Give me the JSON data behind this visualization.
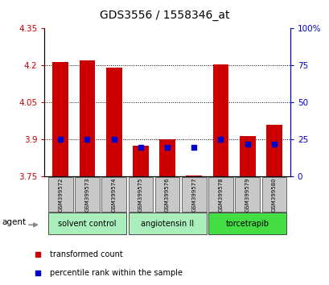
{
  "title": "GDS3556 / 1558346_at",
  "samples": [
    "GSM399572",
    "GSM399573",
    "GSM399574",
    "GSM399575",
    "GSM399576",
    "GSM399577",
    "GSM399578",
    "GSM399579",
    "GSM399580"
  ],
  "red_values": [
    4.215,
    4.22,
    4.19,
    3.875,
    3.9,
    3.755,
    4.205,
    3.915,
    3.96
  ],
  "blue_values_pct": [
    25,
    25,
    25,
    20,
    20,
    20,
    25,
    22,
    22
  ],
  "ylim_left": [
    3.75,
    4.35
  ],
  "ylim_right": [
    0,
    100
  ],
  "yticks_left": [
    3.75,
    3.9,
    4.05,
    4.2,
    4.35
  ],
  "yticks_right": [
    0,
    25,
    50,
    75,
    100
  ],
  "ytick_labels_left": [
    "3.75",
    "3.9",
    "4.05",
    "4.2",
    "4.35"
  ],
  "ytick_labels_right": [
    "0",
    "25",
    "50",
    "75",
    "100%"
  ],
  "groups": [
    {
      "label": "solvent control",
      "indices": [
        0,
        1,
        2
      ]
    },
    {
      "label": "angiotensin II",
      "indices": [
        3,
        4,
        5
      ]
    },
    {
      "label": "torcetrapib",
      "indices": [
        6,
        7,
        8
      ]
    }
  ],
  "group_colors": [
    "#aaeebb",
    "#aaeebb",
    "#44dd44"
  ],
  "bar_color": "#CC0000",
  "dot_color": "#0000CC",
  "base_value": 3.75,
  "legend_red": "transformed count",
  "legend_blue": "percentile rank within the sample",
  "agent_label": "agent",
  "left_yaxis_color": "#CC0000",
  "right_yaxis_color": "#0000CC",
  "sample_box_color": "#C8C8C8",
  "background_color": "#FFFFFF"
}
